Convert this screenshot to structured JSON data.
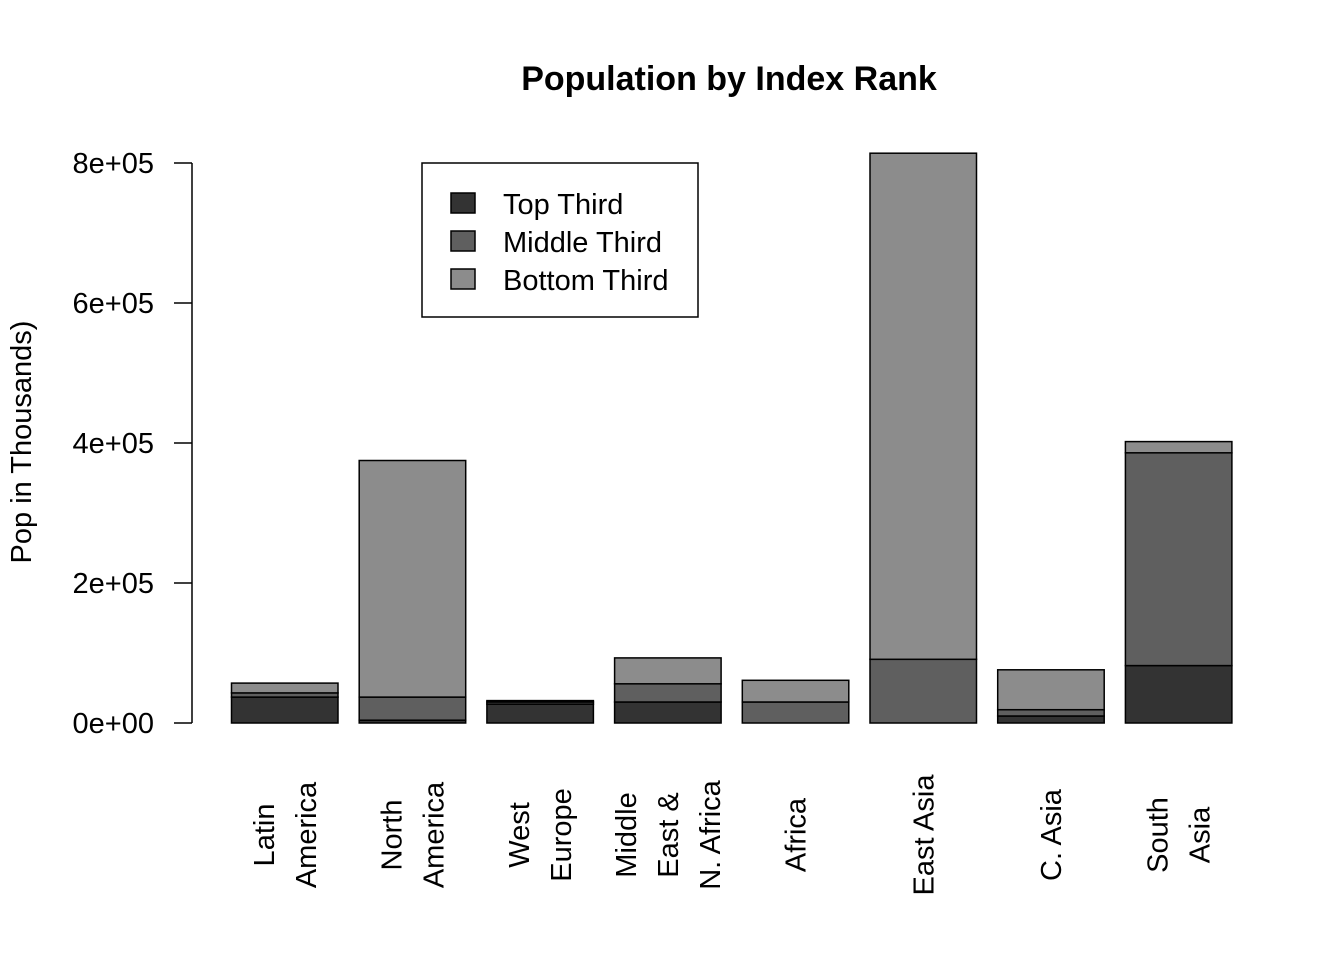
{
  "chart_data": {
    "type": "bar",
    "stacked": true,
    "title": "Population by Index Rank",
    "ylabel": "Pop in Thousands)",
    "xlabel": "",
    "ylim": [
      0,
      800000
    ],
    "yticks": [
      0,
      200000,
      400000,
      600000,
      800000
    ],
    "ytick_labels": [
      "0e+00",
      "2e+05",
      "4e+05",
      "6e+05",
      "8e+05"
    ],
    "categories": [
      [
        "Latin",
        "America"
      ],
      [
        "North",
        "America"
      ],
      [
        "West",
        "Europe"
      ],
      [
        "Middle",
        "East &",
        "N. Africa"
      ],
      [
        "Africa"
      ],
      [
        "East Asia"
      ],
      [
        "C. Asia"
      ],
      [
        "South",
        "Asia"
      ]
    ],
    "series": [
      {
        "name": "Top Third",
        "color": "#333333",
        "values": [
          37000,
          4000,
          27000,
          30000,
          0,
          0,
          10000,
          82000
        ]
      },
      {
        "name": "Middle Third",
        "color": "#5f5f5f",
        "values": [
          6000,
          33000,
          3000,
          26000,
          30000,
          91000,
          9000,
          304000
        ]
      },
      {
        "name": "Bottom Third",
        "color": "#8c8c8c",
        "values": [
          14000,
          338000,
          2000,
          37000,
          31000,
          723000,
          57000,
          16000
        ]
      }
    ],
    "legend_position": "top-left",
    "grid": false
  }
}
